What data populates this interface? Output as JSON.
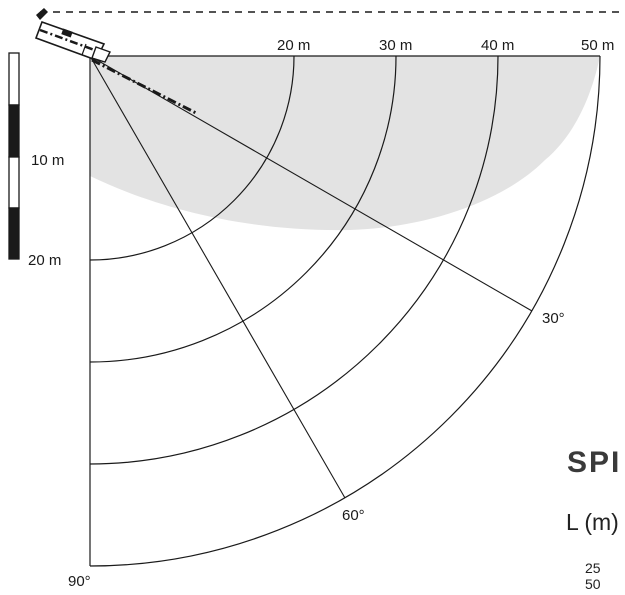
{
  "distance_labels": [
    "20 m",
    "30 m",
    "40 m",
    "50 m"
  ],
  "angle_labels": [
    "30°",
    "60°",
    "90°"
  ],
  "scale_bar": {
    "labels": [
      "10 m",
      "20 m"
    ]
  },
  "side_text": {
    "title": "SPI",
    "subtitle": "L (m)",
    "rows": [
      "25",
      "50"
    ]
  },
  "colors": {
    "coverage_zone": "#e3e3e3",
    "lines": "#1a1a1a",
    "scale_dark": "#1a1a1a"
  },
  "icons": {
    "sensor": "camera-sensor-icon"
  }
}
